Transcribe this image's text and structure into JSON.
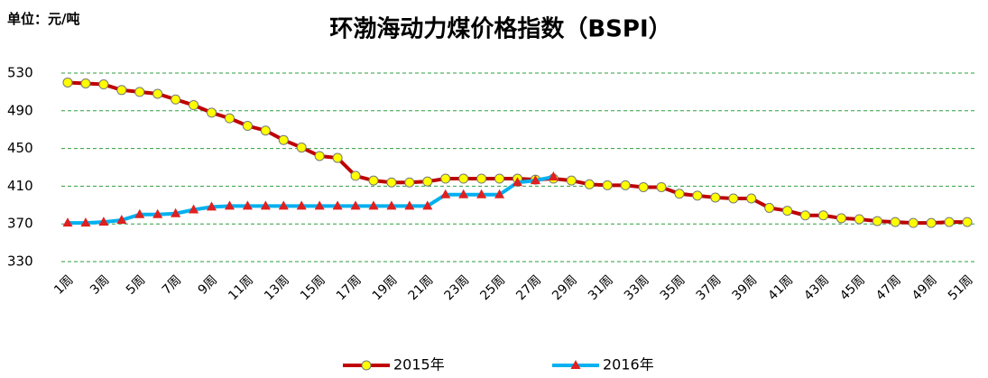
{
  "chart_data": {
    "type": "line",
    "title": "环渤海动力煤价格指数（BSPI）",
    "unit_label": "单位：元/吨",
    "categories": [
      "1周",
      null,
      "3周",
      null,
      "5周",
      null,
      "7周",
      null,
      "9周",
      null,
      "11周",
      null,
      "13周",
      null,
      "15周",
      null,
      "17周",
      null,
      "19周",
      null,
      "21周",
      null,
      "23周",
      null,
      "25周",
      null,
      "27周",
      null,
      "29周",
      null,
      "31周",
      null,
      "33周",
      null,
      "35周",
      null,
      "37周",
      null,
      "39周",
      null,
      "41周",
      null,
      "43周",
      null,
      "45周",
      null,
      "47周",
      null,
      "49周",
      null,
      "51周"
    ],
    "series": [
      {
        "name": "2015年",
        "color": "#c00000",
        "marker": "circle",
        "marker_color": "#ffff00",
        "values": [
          520,
          519,
          518,
          512,
          510,
          508,
          502,
          496,
          488,
          482,
          474,
          469,
          459,
          451,
          442,
          440,
          421,
          416,
          414,
          414,
          415,
          418,
          418,
          418,
          418,
          418,
          417,
          418,
          416,
          412,
          411,
          411,
          409,
          409,
          402,
          400,
          398,
          397,
          397,
          387,
          384,
          379,
          379,
          376,
          375,
          373,
          372,
          371,
          371,
          372,
          372
        ]
      },
      {
        "name": "2016年",
        "color": "#00b0f0",
        "marker": "triangle",
        "marker_color": "#e02020",
        "values": [
          371,
          371,
          372,
          374,
          380,
          380,
          381,
          385,
          388,
          389,
          389,
          389,
          389,
          389,
          389,
          389,
          389,
          389,
          389,
          389,
          389,
          401,
          401,
          401,
          401,
          414,
          416,
          420,
          null,
          null,
          null,
          null,
          null,
          null,
          null,
          null,
          null,
          null,
          null,
          null,
          null,
          null,
          null,
          null,
          null,
          null,
          null,
          null,
          null,
          null,
          null
        ]
      }
    ],
    "ylim": [
      330,
      530
    ],
    "yticks": [
      330,
      370,
      410,
      450,
      490,
      530
    ],
    "grid": true,
    "grid_color": "#2e9e3e",
    "legend": "bottom"
  }
}
